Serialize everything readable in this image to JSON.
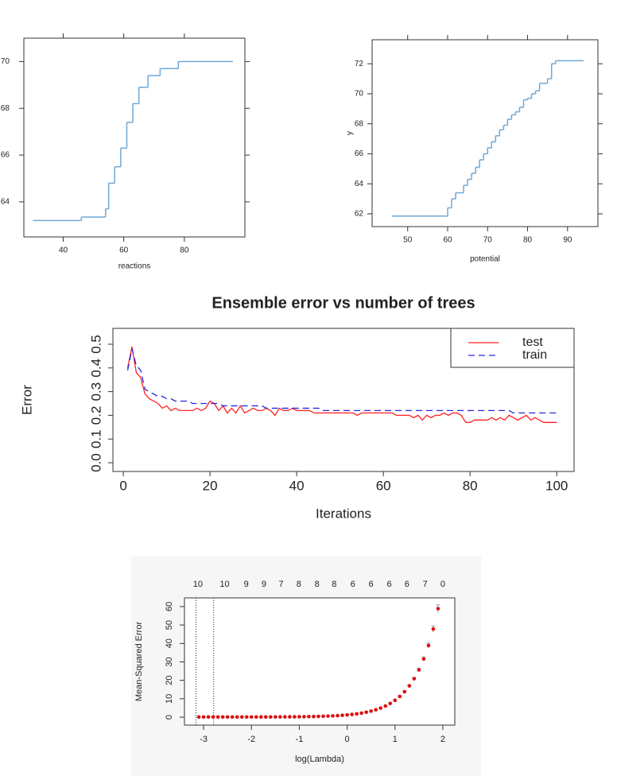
{
  "chart_data": [
    {
      "type": "line",
      "step": true,
      "xlabel": "reactions",
      "color": "#6fa8d6",
      "x": [
        30,
        46,
        54,
        55,
        57,
        59,
        61,
        63,
        65,
        68,
        72,
        78,
        80,
        96
      ],
      "values": [
        63.2,
        63.35,
        63.7,
        64.8,
        65.5,
        66.3,
        67.4,
        68.2,
        68.9,
        69.4,
        69.7,
        70.0,
        70.0,
        70.0
      ],
      "xlim": [
        27,
        100
      ],
      "ylim": [
        62.5,
        71
      ],
      "xticks": [
        40,
        60,
        80
      ],
      "yticks": [
        64,
        66,
        68,
        70
      ]
    },
    {
      "type": "line",
      "step": true,
      "xlabel": "potential",
      "ylabel": "y",
      "color": "#6fa8d6",
      "x": [
        46,
        59,
        60,
        61,
        62,
        64,
        65,
        66,
        67,
        68,
        69,
        70,
        71,
        72,
        73,
        74,
        75,
        76,
        77,
        78,
        79,
        80,
        81,
        82,
        83,
        85,
        86,
        87,
        94
      ],
      "values": [
        61.85,
        61.85,
        62.4,
        63.0,
        63.4,
        63.9,
        64.3,
        64.7,
        65.1,
        65.6,
        66.0,
        66.4,
        66.8,
        67.2,
        67.6,
        67.9,
        68.3,
        68.6,
        68.8,
        69.1,
        69.6,
        69.7,
        70.0,
        70.2,
        70.7,
        71.0,
        72.0,
        72.2,
        72.2
      ],
      "xlim": [
        41.1,
        97.6
      ],
      "ylim": [
        61.15,
        73.6
      ],
      "xticks": [
        50,
        60,
        70,
        80,
        90
      ],
      "yticks": [
        62,
        64,
        66,
        68,
        70,
        72
      ]
    },
    {
      "type": "line",
      "title": "Ensemble error vs number of trees",
      "xlabel": "Iterations",
      "ylabel": "Error",
      "legend": "top-right",
      "x": [
        1,
        2,
        3,
        4,
        5,
        6,
        7,
        8,
        9,
        10,
        11,
        12,
        13,
        14,
        15,
        16,
        17,
        18,
        19,
        20,
        21,
        22,
        23,
        24,
        25,
        26,
        27,
        28,
        29,
        30,
        31,
        32,
        33,
        34,
        35,
        36,
        37,
        38,
        39,
        40,
        41,
        42,
        43,
        44,
        45,
        46,
        47,
        48,
        49,
        50,
        51,
        52,
        53,
        54,
        55,
        56,
        57,
        58,
        59,
        60,
        61,
        62,
        63,
        64,
        65,
        66,
        67,
        68,
        69,
        70,
        71,
        72,
        73,
        74,
        75,
        76,
        77,
        78,
        79,
        80,
        81,
        82,
        83,
        84,
        85,
        86,
        87,
        88,
        89,
        90,
        91,
        92,
        93,
        94,
        95,
        96,
        97,
        98,
        99,
        100
      ],
      "series": [
        {
          "name": "test",
          "color": "#ff2020",
          "linestyle": "solid",
          "values": [
            0.4,
            0.49,
            0.38,
            0.36,
            0.29,
            0.27,
            0.26,
            0.25,
            0.23,
            0.24,
            0.22,
            0.23,
            0.22,
            0.22,
            0.22,
            0.22,
            0.23,
            0.22,
            0.23,
            0.26,
            0.25,
            0.22,
            0.24,
            0.21,
            0.23,
            0.21,
            0.24,
            0.21,
            0.22,
            0.23,
            0.22,
            0.22,
            0.23,
            0.22,
            0.2,
            0.23,
            0.22,
            0.22,
            0.23,
            0.22,
            0.22,
            0.22,
            0.22,
            0.21,
            0.21,
            0.21,
            0.21,
            0.21,
            0.21,
            0.21,
            0.21,
            0.21,
            0.21,
            0.2,
            0.21,
            0.21,
            0.21,
            0.21,
            0.21,
            0.21,
            0.21,
            0.21,
            0.2,
            0.2,
            0.2,
            0.2,
            0.19,
            0.2,
            0.18,
            0.2,
            0.19,
            0.2,
            0.2,
            0.21,
            0.2,
            0.21,
            0.21,
            0.2,
            0.17,
            0.17,
            0.18,
            0.18,
            0.18,
            0.18,
            0.19,
            0.18,
            0.19,
            0.18,
            0.2,
            0.19,
            0.18,
            0.19,
            0.2,
            0.18,
            0.19,
            0.18,
            0.17,
            0.17,
            0.17,
            0.17
          ]
        },
        {
          "name": "train",
          "color": "#2828e0",
          "linestyle": "dashed",
          "values": [
            0.39,
            0.48,
            0.41,
            0.39,
            0.31,
            0.3,
            0.29,
            0.28,
            0.28,
            0.27,
            0.27,
            0.26,
            0.26,
            0.26,
            0.26,
            0.25,
            0.25,
            0.25,
            0.25,
            0.25,
            0.25,
            0.25,
            0.24,
            0.24,
            0.24,
            0.24,
            0.24,
            0.24,
            0.24,
            0.24,
            0.24,
            0.24,
            0.23,
            0.23,
            0.23,
            0.23,
            0.23,
            0.23,
            0.23,
            0.23,
            0.23,
            0.23,
            0.23,
            0.23,
            0.23,
            0.22,
            0.22,
            0.22,
            0.22,
            0.22,
            0.22,
            0.22,
            0.22,
            0.22,
            0.22,
            0.22,
            0.22,
            0.22,
            0.22,
            0.22,
            0.22,
            0.22,
            0.22,
            0.22,
            0.22,
            0.22,
            0.22,
            0.22,
            0.22,
            0.22,
            0.22,
            0.22,
            0.22,
            0.22,
            0.22,
            0.22,
            0.22,
            0.22,
            0.22,
            0.22,
            0.22,
            0.22,
            0.22,
            0.22,
            0.22,
            0.22,
            0.22,
            0.22,
            0.22,
            0.21,
            0.21,
            0.21,
            0.21,
            0.21,
            0.21,
            0.21,
            0.21,
            0.21,
            0.21,
            0.21
          ]
        }
      ],
      "xlim": [
        -2.4,
        104
      ],
      "ylim": [
        -0.037,
        0.567
      ],
      "xticks": [
        0,
        20,
        40,
        60,
        80,
        100
      ],
      "yticks": [
        {
          "value": 0,
          "label": "0.0"
        },
        0.1,
        0.2,
        0.3,
        0.4,
        0.5
      ]
    },
    {
      "type": "scatter",
      "xlabel": "log(Lambda)",
      "ylabel": "Mean-Squared Error",
      "color": "#dd1111",
      "error_color": "#999999",
      "x": [
        -3.1,
        -3.0,
        -2.9,
        -2.8,
        -2.7,
        -2.6,
        -2.5,
        -2.4,
        -2.3,
        -2.2,
        -2.1,
        -2.0,
        -1.9,
        -1.8,
        -1.7,
        -1.6,
        -1.5,
        -1.4,
        -1.3,
        -1.2,
        -1.1,
        -1.0,
        -0.9,
        -0.8,
        -0.7,
        -0.6,
        -0.5,
        -0.4,
        -0.3,
        -0.2,
        -0.1,
        0,
        0.1,
        0.2,
        0.3,
        0.4,
        0.5,
        0.6,
        0.7,
        0.8,
        0.9,
        1.0,
        1.1,
        1.2,
        1.3,
        1.4,
        1.5,
        1.6,
        1.7,
        1.8,
        1.9
      ],
      "values": [
        0.1,
        0.1,
        0.1,
        0.1,
        0.1,
        0.11,
        0.11,
        0.11,
        0.11,
        0.11,
        0.11,
        0.12,
        0.12,
        0.13,
        0.13,
        0.14,
        0.15,
        0.16,
        0.18,
        0.19,
        0.21,
        0.24,
        0.27,
        0.31,
        0.36,
        0.42,
        0.5,
        0.59,
        0.71,
        0.84,
        1.02,
        1.23,
        1.49,
        1.81,
        2.21,
        2.7,
        3.3,
        4.04,
        4.95,
        6.07,
        7.45,
        9.14,
        11.23,
        13.81,
        16.97,
        20.87,
        25.67,
        31.58,
        38.86,
        47.82,
        58.86
      ],
      "errors": [
        0.01,
        0.01,
        0.01,
        0.01,
        0.01,
        0.01,
        0.01,
        0.01,
        0.01,
        0.01,
        0.01,
        0.01,
        0.01,
        0.01,
        0.01,
        0.01,
        0.01,
        0.01,
        0.01,
        0.01,
        0.01,
        0.01,
        0.02,
        0.02,
        0.02,
        0.02,
        0.02,
        0.02,
        0.03,
        0.03,
        0.03,
        0.04,
        0.05,
        0.06,
        0.08,
        0.09,
        0.12,
        0.14,
        0.17,
        0.21,
        0.26,
        0.32,
        0.39,
        0.48,
        0.59,
        0.73,
        0.9,
        1.11,
        1.36,
        1.67,
        2.06
      ],
      "vlines": [
        -3.16,
        -2.79
      ],
      "xlim": [
        -3.4,
        2.25
      ],
      "ylim": [
        -4.3,
        64.7
      ],
      "xticks": [
        -3,
        -2,
        -1,
        0,
        1,
        2
      ],
      "yticks": [
        0,
        10,
        20,
        30,
        40,
        50,
        60
      ],
      "x2ticks": [
        {
          "value": -3.12,
          "label": "10"
        },
        {
          "value": -2.56,
          "label": "10"
        },
        {
          "value": -2.11,
          "label": "9"
        },
        {
          "value": -1.74,
          "label": "9"
        },
        {
          "value": -1.38,
          "label": "7"
        },
        {
          "value": -1.01,
          "label": "8"
        },
        {
          "value": -0.63,
          "label": "8"
        },
        {
          "value": -0.27,
          "label": "8"
        },
        {
          "value": 0.12,
          "label": "6"
        },
        {
          "value": 0.5,
          "label": "6"
        },
        {
          "value": 0.88,
          "label": "6"
        },
        {
          "value": 1.25,
          "label": "6"
        },
        {
          "value": 1.63,
          "label": "7"
        },
        {
          "value": 2.0,
          "label": "0"
        }
      ]
    }
  ]
}
